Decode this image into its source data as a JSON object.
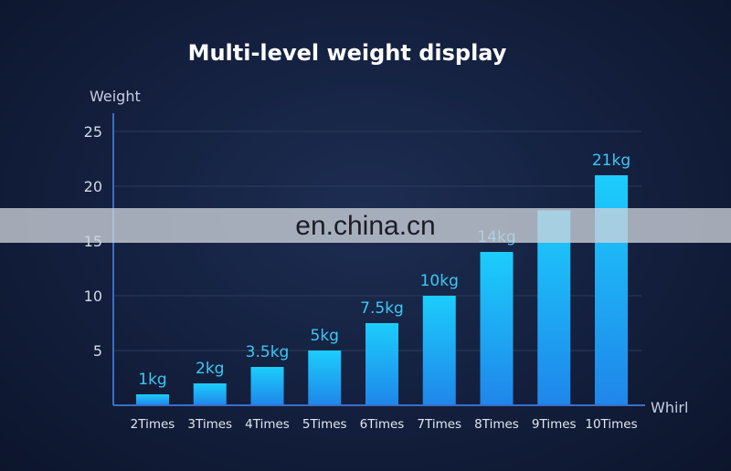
{
  "chart_data": {
    "type": "bar",
    "title": "Multi-level weight display",
    "ylabel": "Weight",
    "xlabel": "Whirl",
    "categories": [
      "2Times",
      "3Times",
      "4Times",
      "5Times",
      "6Times",
      "7Times",
      "8Times",
      "9Times",
      "10Times"
    ],
    "values": [
      1,
      2,
      3.5,
      5,
      7.5,
      10,
      14,
      17.8,
      21
    ],
    "data_labels": [
      "1kg",
      "2kg",
      "3.5kg",
      "5kg",
      "7.5kg",
      "10kg",
      "14kg",
      "",
      "21kg"
    ],
    "yticks": [
      5,
      10,
      15,
      20,
      25
    ],
    "ylim": [
      0,
      27
    ],
    "grid": true,
    "colors": {
      "bar_top": "#1ccdfc",
      "bar_bottom": "#1f86ea",
      "label": "#3cc8f4",
      "grid": "#2c3c5c",
      "axis": "#3a6ec8"
    }
  },
  "watermark": "en.china.cn"
}
